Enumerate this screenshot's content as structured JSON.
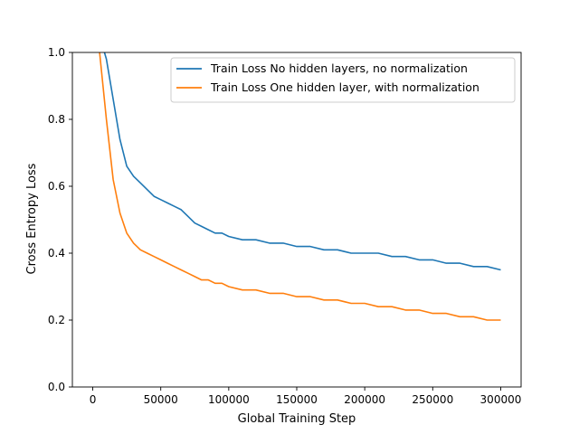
{
  "chart_data": {
    "type": "line",
    "title": "",
    "xlabel": "Global Training Step",
    "ylabel": "Cross Entropy Loss",
    "xlim": [
      -15000,
      315000
    ],
    "ylim": [
      0.0,
      1.0
    ],
    "xticks": [
      0,
      50000,
      100000,
      150000,
      200000,
      250000,
      300000
    ],
    "yticks": [
      0.0,
      0.2,
      0.4,
      0.6,
      0.8,
      1.0
    ],
    "xtick_labels": [
      "0",
      "50000",
      "100000",
      "150000",
      "200000",
      "250000",
      "300000"
    ],
    "ytick_labels": [
      "0.0",
      "0.2",
      "0.4",
      "0.6",
      "0.8",
      "1.0"
    ],
    "grid": false,
    "legend": "top-right",
    "series": [
      {
        "name": "Train Loss No hidden layers, no normalization",
        "color": "#1f77b4",
        "x": [
          5000,
          10000,
          15000,
          20000,
          25000,
          30000,
          35000,
          40000,
          45000,
          50000,
          55000,
          60000,
          65000,
          70000,
          75000,
          80000,
          85000,
          90000,
          95000,
          100000,
          110000,
          120000,
          130000,
          140000,
          150000,
          160000,
          170000,
          180000,
          190000,
          200000,
          210000,
          220000,
          230000,
          240000,
          250000,
          260000,
          270000,
          280000,
          290000,
          300000
        ],
        "y": [
          1.05,
          0.98,
          0.86,
          0.74,
          0.66,
          0.63,
          0.61,
          0.59,
          0.57,
          0.56,
          0.55,
          0.54,
          0.53,
          0.51,
          0.49,
          0.48,
          0.47,
          0.46,
          0.46,
          0.45,
          0.44,
          0.44,
          0.43,
          0.43,
          0.42,
          0.42,
          0.41,
          0.41,
          0.4,
          0.4,
          0.4,
          0.39,
          0.39,
          0.38,
          0.38,
          0.37,
          0.37,
          0.36,
          0.36,
          0.35
        ]
      },
      {
        "name": "Train Loss One hidden layer, with normalization",
        "color": "#ff7f0e",
        "x": [
          5000,
          10000,
          15000,
          20000,
          25000,
          30000,
          35000,
          40000,
          45000,
          50000,
          55000,
          60000,
          65000,
          70000,
          75000,
          80000,
          85000,
          90000,
          95000,
          100000,
          110000,
          120000,
          130000,
          140000,
          150000,
          160000,
          170000,
          180000,
          190000,
          200000,
          210000,
          220000,
          230000,
          240000,
          250000,
          260000,
          270000,
          280000,
          290000,
          300000
        ],
        "y": [
          1.0,
          0.8,
          0.62,
          0.52,
          0.46,
          0.43,
          0.41,
          0.4,
          0.39,
          0.38,
          0.37,
          0.36,
          0.35,
          0.34,
          0.33,
          0.32,
          0.32,
          0.31,
          0.31,
          0.3,
          0.29,
          0.29,
          0.28,
          0.28,
          0.27,
          0.27,
          0.26,
          0.26,
          0.25,
          0.25,
          0.24,
          0.24,
          0.23,
          0.23,
          0.22,
          0.22,
          0.21,
          0.21,
          0.2,
          0.2
        ]
      }
    ]
  }
}
